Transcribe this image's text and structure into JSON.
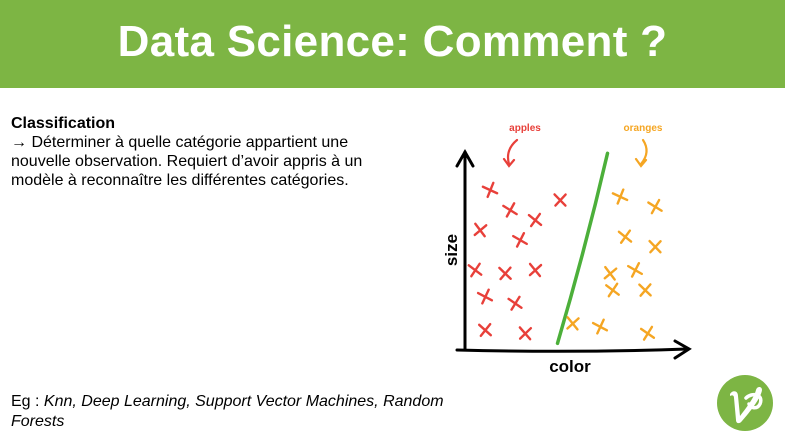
{
  "slide": {
    "title": "Data Science: Comment ?",
    "section_heading": "Classification",
    "arrow_glyph": "→",
    "description": " Déterminer à quelle catégorie appartient une nouvelle observation.  Requiert d’avoir appris à un modèle à reconnaître les différentes catégories.",
    "example_prefix": "Eg : ",
    "example_items": "Knn, Deep Learning, Support Vector Machines, Random Forests"
  },
  "colors": {
    "banner": "#7db544",
    "apples": "#e8403a",
    "oranges": "#f5a623",
    "separator": "#4caf3a",
    "logo": "#7db544"
  },
  "chart_data": {
    "type": "scatter",
    "xlabel": "color",
    "ylabel": "size",
    "series": [
      {
        "name": "apples",
        "points": [
          [
            1,
            9.6
          ],
          [
            1.8,
            8.4
          ],
          [
            2.8,
            7.8
          ],
          [
            3.8,
            9.0
          ],
          [
            0.6,
            7.2
          ],
          [
            2.2,
            6.6
          ],
          [
            0.4,
            4.8
          ],
          [
            1.6,
            4.6
          ],
          [
            2.8,
            4.8
          ],
          [
            0.8,
            3.2
          ],
          [
            2.0,
            2.8
          ],
          [
            0.8,
            1.2
          ],
          [
            2.4,
            1.0
          ]
        ]
      },
      {
        "name": "oranges",
        "points": [
          [
            6.2,
            9.2
          ],
          [
            7.6,
            8.6
          ],
          [
            6.4,
            6.8
          ],
          [
            7.6,
            6.2
          ],
          [
            5.8,
            4.6
          ],
          [
            6.8,
            4.8
          ],
          [
            5.9,
            3.6
          ],
          [
            7.2,
            3.6
          ],
          [
            4.3,
            1.6
          ],
          [
            5.4,
            1.4
          ],
          [
            7.3,
            1.0
          ]
        ]
      }
    ],
    "separator": [
      [
        3.7,
        0.4
      ],
      [
        5.7,
        11.8
      ]
    ],
    "xlim": [
      0,
      9
    ],
    "ylim": [
      0,
      12
    ]
  }
}
